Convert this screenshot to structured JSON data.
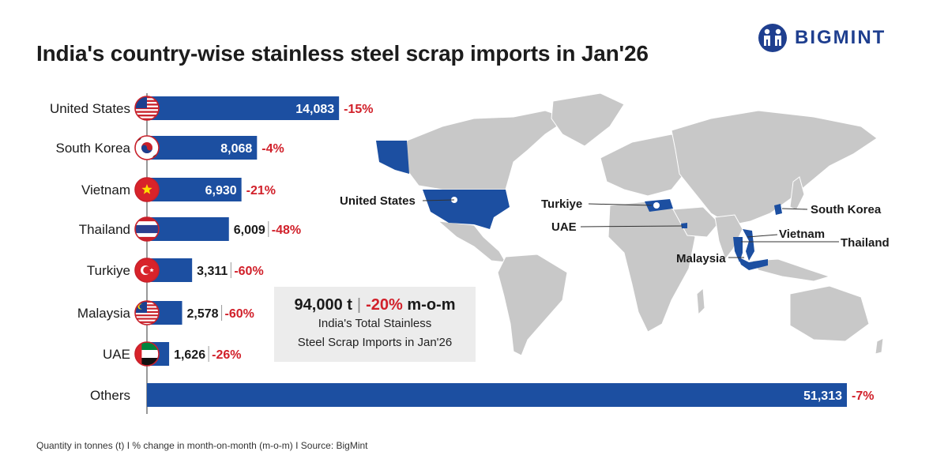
{
  "title": "India's country-wise stainless steel scrap imports in Jan'26",
  "brand": {
    "name": "BIGMINT",
    "color": "#1f3f8f"
  },
  "colors": {
    "bar": "#1c4fa1",
    "negative": "#d1202a",
    "land": "#c8c8c8",
    "highlight": "#1c4fa1"
  },
  "chart_data": {
    "type": "bar",
    "orientation": "horizontal",
    "categories": [
      "United States",
      "South Korea",
      "Vietnam",
      "Thailand",
      "Turkiye",
      "Malaysia",
      "UAE",
      "Others"
    ],
    "values": [
      14083,
      8068,
      6930,
      6009,
      3311,
      2578,
      1626,
      51313
    ],
    "value_labels": [
      "14,083",
      "8,068",
      "6,930",
      "6,009",
      "3,311",
      "2,578",
      "1,626",
      "51,313"
    ],
    "change_labels": [
      "-15%",
      "-4%",
      "-21%",
      "-48%",
      "-60%",
      "-60%",
      "-26%",
      "-7%"
    ],
    "flags": [
      "us-flag-icon",
      "south-korea-flag-icon",
      "vietnam-flag-icon",
      "thailand-flag-icon",
      "turkiye-flag-icon",
      "malaysia-flag-icon",
      "uae-flag-icon",
      null
    ],
    "unit": "tonnes"
  },
  "map": {
    "callouts": [
      "United States",
      "Turkiye",
      "UAE",
      "South Korea",
      "Vietnam",
      "Thailand",
      "Malaysia"
    ]
  },
  "kpi": {
    "value": "94,000 t",
    "separator": "|",
    "change": "-20%",
    "change_suffix": "m-o-m",
    "line1": "India's Total Stainless",
    "line2": "Steel Scrap Imports in Jan'26"
  },
  "footer": "Quantity in tonnes (t)  I  % change in month-on-month (m-o-m)  I  Source: BigMint"
}
